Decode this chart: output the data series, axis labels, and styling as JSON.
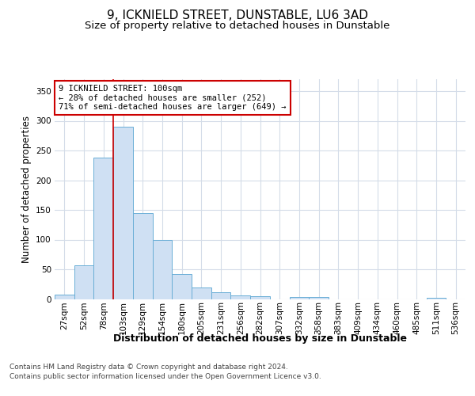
{
  "title": "9, ICKNIELD STREET, DUNSTABLE, LU6 3AD",
  "subtitle": "Size of property relative to detached houses in Dunstable",
  "xlabel": "Distribution of detached houses by size in Dunstable",
  "ylabel": "Number of detached properties",
  "footer_line1": "Contains HM Land Registry data © Crown copyright and database right 2024.",
  "footer_line2": "Contains public sector information licensed under the Open Government Licence v3.0.",
  "categories": [
    "27sqm",
    "52sqm",
    "78sqm",
    "103sqm",
    "129sqm",
    "154sqm",
    "180sqm",
    "205sqm",
    "231sqm",
    "256sqm",
    "282sqm",
    "307sqm",
    "332sqm",
    "358sqm",
    "383sqm",
    "409sqm",
    "434sqm",
    "460sqm",
    "485sqm",
    "511sqm",
    "536sqm"
  ],
  "bar_values": [
    8,
    57,
    238,
    290,
    145,
    100,
    42,
    20,
    12,
    6,
    5,
    0,
    4,
    4,
    0,
    0,
    0,
    0,
    0,
    2,
    0
  ],
  "bar_color": "#cfe0f3",
  "bar_edge_color": "#6aaed6",
  "ylim": [
    0,
    370
  ],
  "yticks": [
    0,
    50,
    100,
    150,
    200,
    250,
    300,
    350
  ],
  "annotation_line1": "9 ICKNIELD STREET: 100sqm",
  "annotation_line2": "← 28% of detached houses are smaller (252)",
  "annotation_line3": "71% of semi-detached houses are larger (649) →",
  "vline_color": "#cc0000",
  "annotation_box_edge_color": "#cc0000",
  "grid_color": "#d4dce8",
  "title_fontsize": 11,
  "subtitle_fontsize": 9.5,
  "ylabel_fontsize": 8.5,
  "xlabel_fontsize": 9,
  "tick_fontsize": 7.5,
  "annotation_fontsize": 7.5,
  "footer_fontsize": 6.5
}
